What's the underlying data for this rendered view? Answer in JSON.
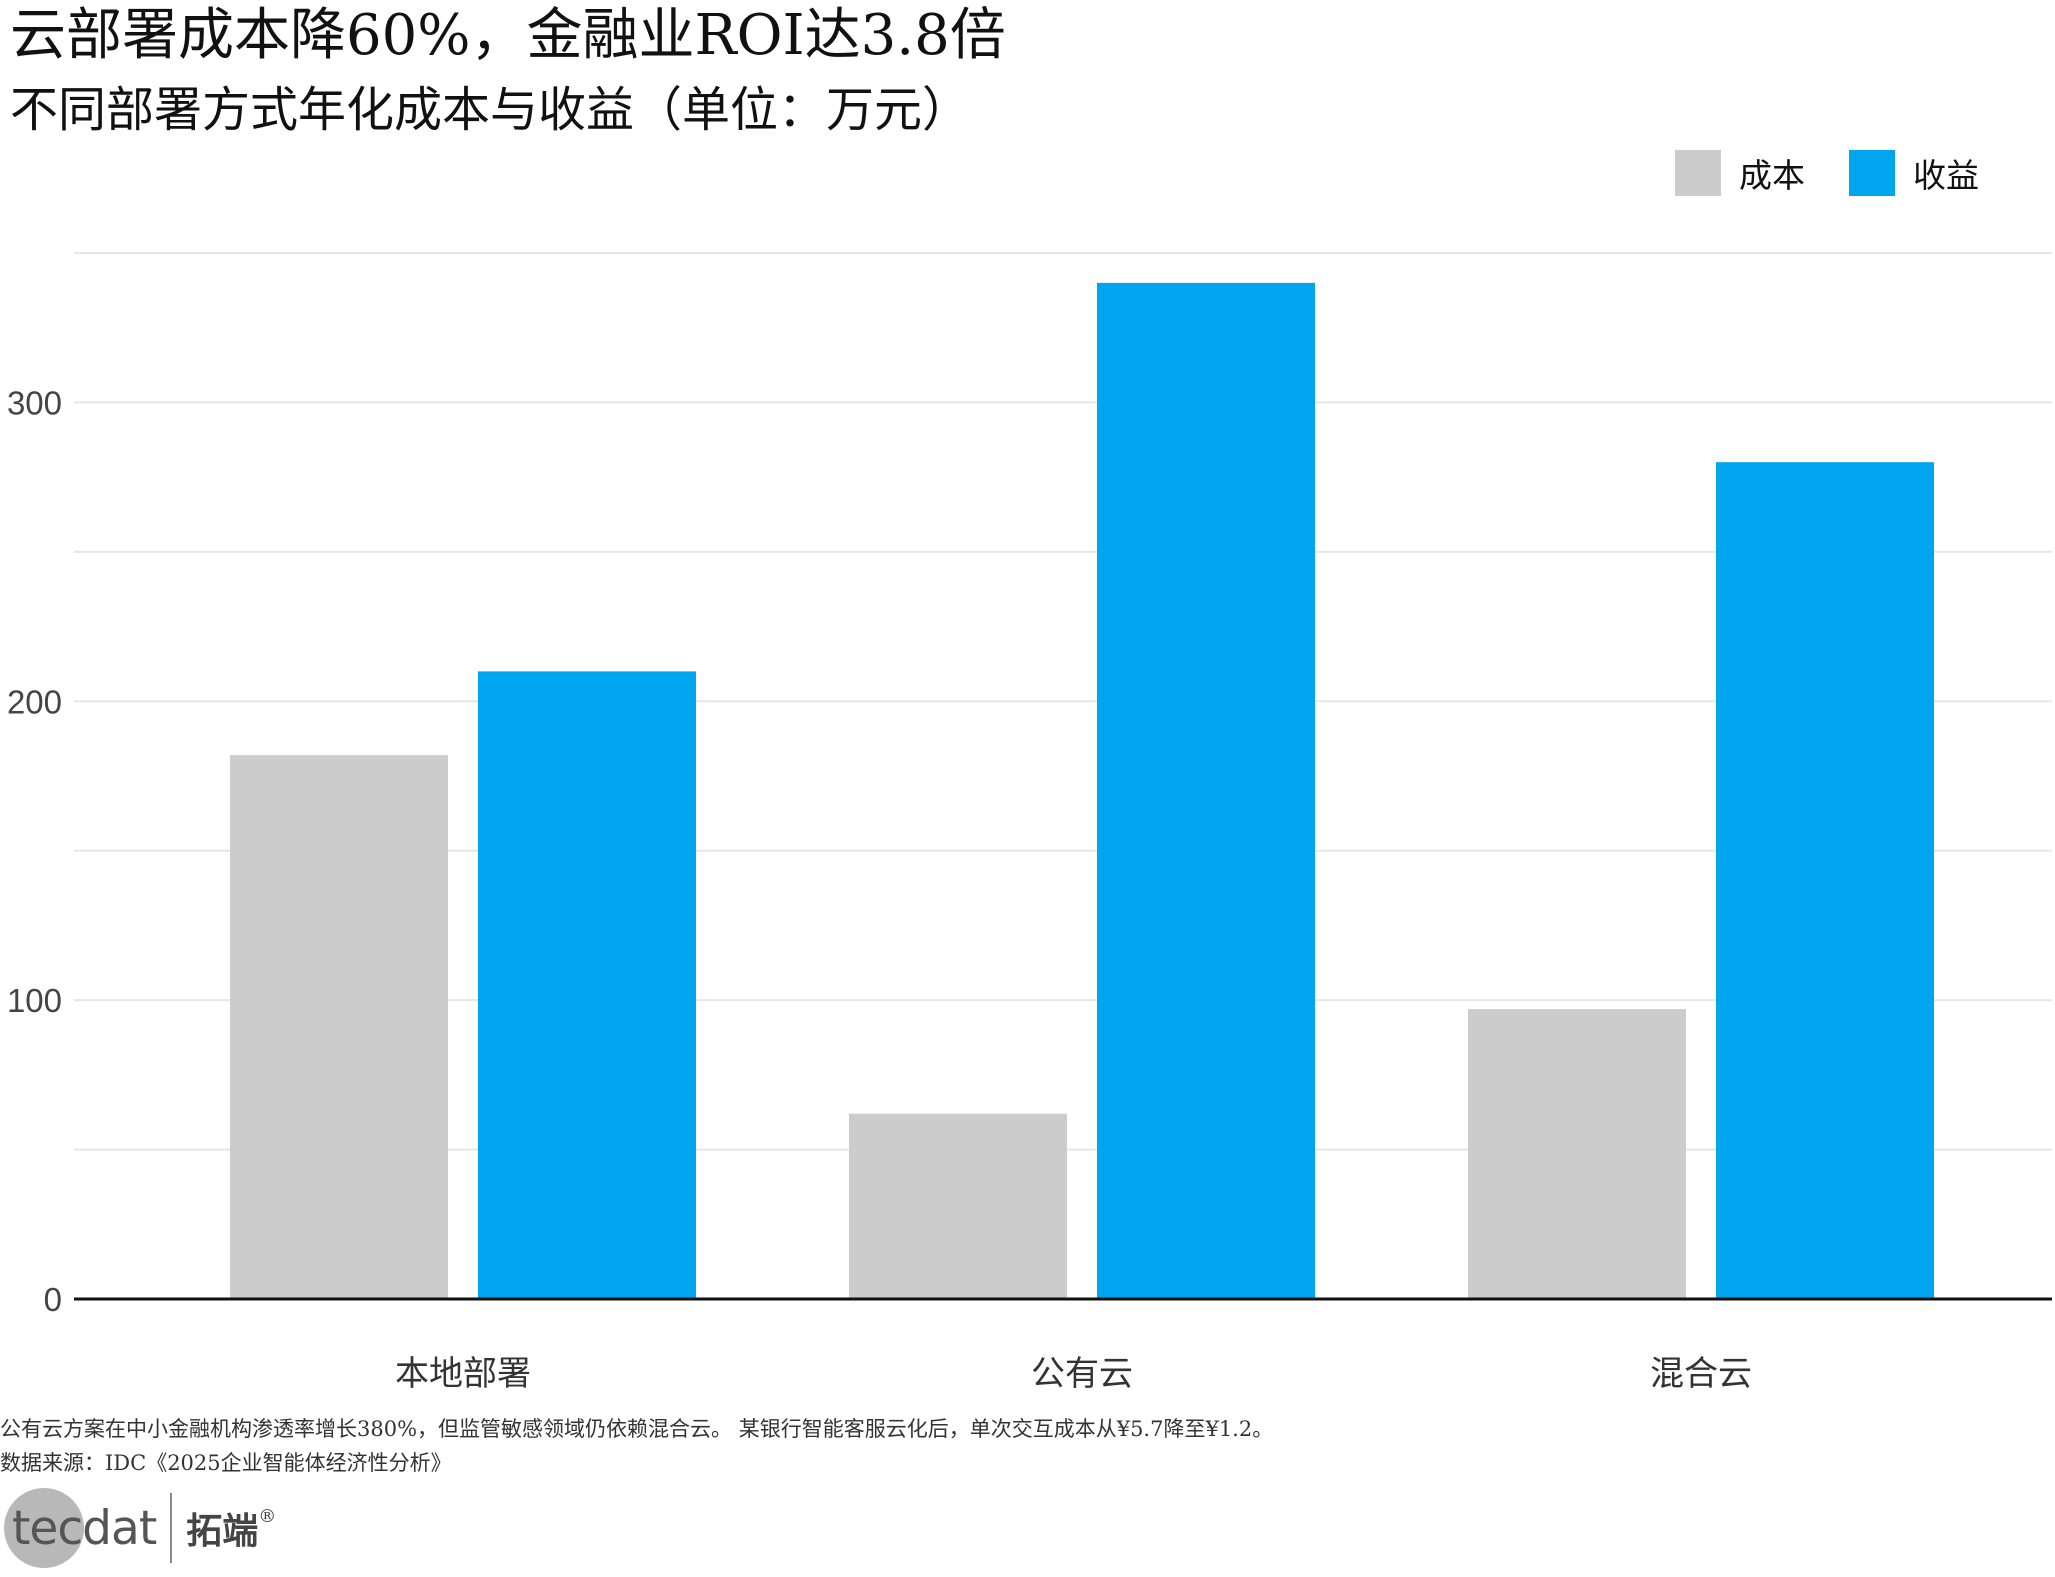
{
  "title": "云部署成本降60%，金融业ROI达3.8倍",
  "subtitle": "不同部署方式年化成本与收益（单位：万元）",
  "notes": [
    "公有云方案在中小金融机构渗透率增长380%，但监管敏感领域仍依赖混合云。 某银行智能客服云化后，单次交互成本从¥5.7降至¥1.2。",
    "数据来源：IDC《2025企业智能体经济性分析》"
  ],
  "logo": {
    "en": "tecdat",
    "cn": "拓端",
    "reg": "®"
  },
  "colors": {
    "cost": "#cccccc",
    "revenue": "#00a5f0",
    "grid": "#e6e6e6",
    "axis": "#111111",
    "tick_text": "#444444"
  },
  "chart_data": {
    "type": "bar",
    "categories": [
      "本地部署",
      "公有云",
      "混合云"
    ],
    "series": [
      {
        "name": "成本",
        "values": [
          182,
          62,
          97
        ]
      },
      {
        "name": "收益",
        "values": [
          210,
          340,
          280
        ]
      }
    ],
    "yticks": [
      0,
      100,
      200,
      300
    ],
    "ylim": [
      0,
      350
    ],
    "grid": true,
    "legend_position": "top-right"
  }
}
